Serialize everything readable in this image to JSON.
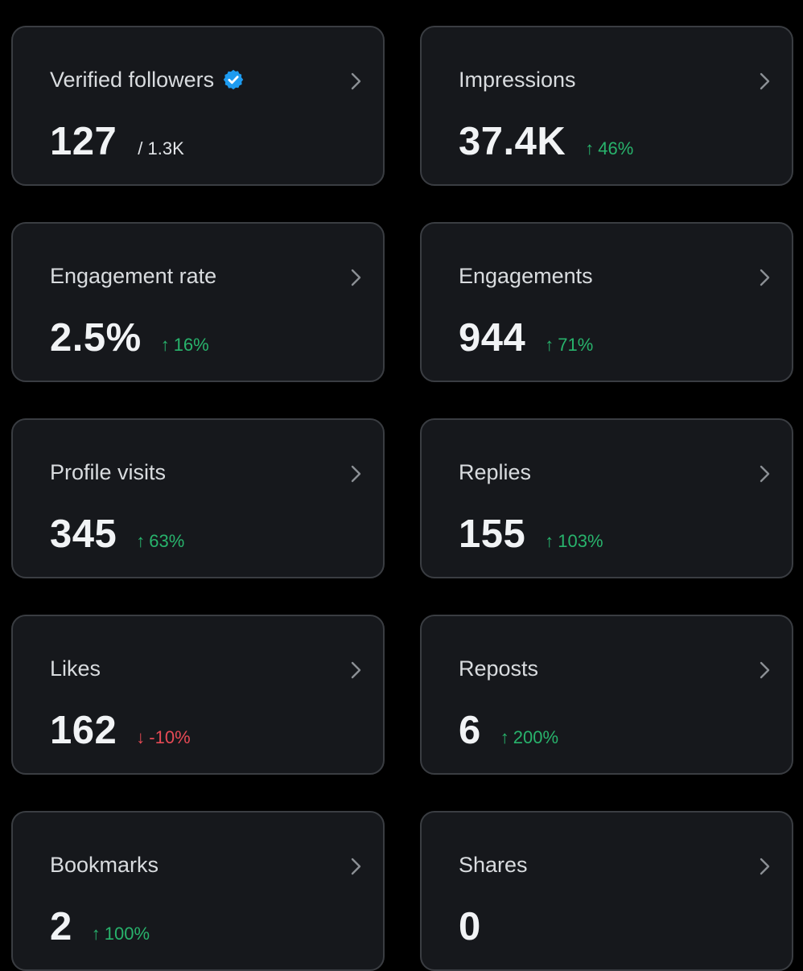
{
  "cards": [
    {
      "title": "Verified followers",
      "value": "127",
      "sub": "/ 1.3K",
      "verified": true
    },
    {
      "title": "Impressions",
      "value": "37.4K",
      "arrow": "↑",
      "delta": "46%",
      "direction": "up"
    },
    {
      "title": "Engagement rate",
      "value": "2.5%",
      "arrow": "↑",
      "delta": "16%",
      "direction": "up"
    },
    {
      "title": "Engagements",
      "value": "944",
      "arrow": "↑",
      "delta": "71%",
      "direction": "up"
    },
    {
      "title": "Profile visits",
      "value": "345",
      "arrow": "↑",
      "delta": "63%",
      "direction": "up"
    },
    {
      "title": "Replies",
      "value": "155",
      "arrow": "↑",
      "delta": "103%",
      "direction": "up"
    },
    {
      "title": "Likes",
      "value": "162",
      "arrow": "↓",
      "delta": "-10%",
      "direction": "down"
    },
    {
      "title": "Reposts",
      "value": "6",
      "arrow": "↑",
      "delta": "200%",
      "direction": "up"
    },
    {
      "title": "Bookmarks",
      "value": "2",
      "arrow": "↑",
      "delta": "100%",
      "direction": "up"
    },
    {
      "title": "Shares",
      "value": "0"
    }
  ],
  "colors": {
    "background": "#000000",
    "card": "#16181c",
    "card_border": "#3a3d42",
    "positive": "#28b36c",
    "negative": "#e64a55",
    "verified": "#1d9bf0"
  },
  "icons": {
    "verified": "verified-badge-icon",
    "chevron": "chevron-right-icon"
  }
}
